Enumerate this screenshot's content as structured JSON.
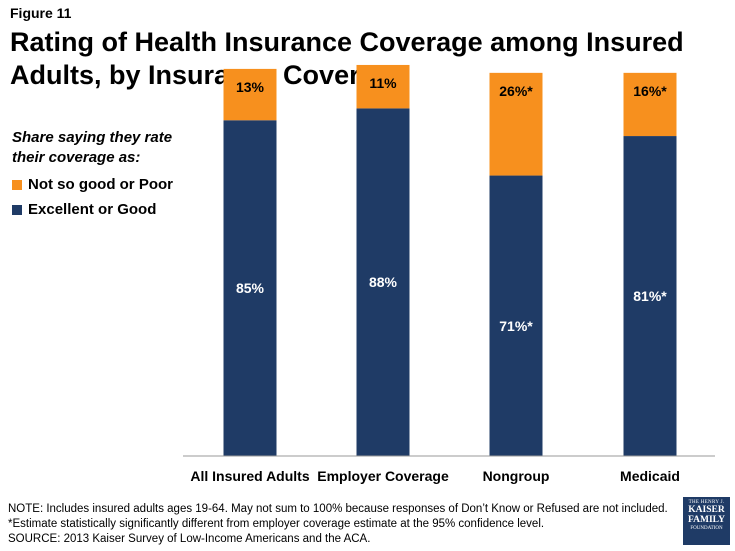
{
  "figure_label": "Figure 11",
  "title": "Rating of Health Insurance Coverage among Insured Adults, by Insurance Coverage",
  "legend": {
    "title": "Share saying they rate their coverage as:",
    "items": [
      {
        "label": "Not so good or Poor",
        "color": "#f7901e"
      },
      {
        "label": "Excellent or Good",
        "color": "#1f3b66"
      }
    ]
  },
  "chart_data": {
    "type": "bar",
    "stacked": true,
    "categories": [
      "All Insured Adults",
      "Employer Coverage",
      "Nongroup",
      "Medicaid"
    ],
    "series": [
      {
        "name": "Excellent or Good",
        "color": "#1f3b66",
        "values": [
          85,
          88,
          71,
          81
        ],
        "labels": [
          "85%",
          "88%",
          "71%*",
          "81%*"
        ]
      },
      {
        "name": "Not so good or Poor",
        "color": "#f7901e",
        "values": [
          13,
          11,
          26,
          16
        ],
        "labels": [
          "13%",
          "11%",
          "26%*",
          "16%*"
        ]
      }
    ],
    "ylim": [
      0,
      100
    ],
    "grid": false,
    "legend_position": "left"
  },
  "notes": [
    "NOTE: Includes insured adults ages 19-64. May not sum to 100% because responses of Don’t Know or Refused are not included.",
    "*Estimate statistically significantly different from employer coverage estimate  at the 95% confidence level.",
    "SOURCE: 2013 Kaiser Survey of Low-Income Americans and the ACA."
  ],
  "logo": {
    "line1": "THE HENRY J.",
    "line2": "KAISER",
    "line3": "FAMILY",
    "line4": "FOUNDATION"
  }
}
